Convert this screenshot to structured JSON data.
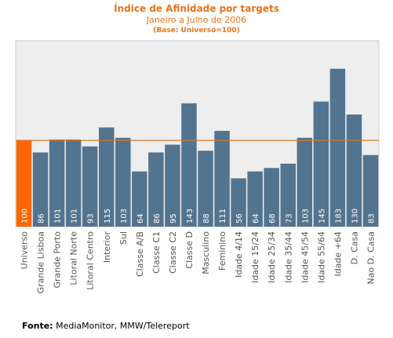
{
  "chart_data": {
    "type": "bar",
    "title": "Índice de Afinidade por targets",
    "subtitle": "Janeiro a Julho de 2006",
    "note": "(Base: Universo=100)",
    "categories": [
      "Universo",
      "Grande Lisboa",
      "Grande Porto",
      "Litoral Norte",
      "Litoral Centro",
      "Interior",
      "Sul",
      "Classe A/B",
      "Classe C1",
      "Classe C2",
      "Classe D",
      "Masculino",
      "Feminino",
      "Idade 4/14",
      "Idade 15/24",
      "Idade 25/34",
      "Idade 35/44",
      "Idade 45/54",
      "Idade 55/64",
      "Idade +64",
      "D. Casa",
      "Nao D. Casa"
    ],
    "values": [
      100,
      86,
      101,
      101,
      93,
      115,
      103,
      64,
      86,
      95,
      143,
      88,
      111,
      56,
      64,
      68,
      73,
      103,
      145,
      183,
      130,
      83
    ],
    "value_labels": [
      "100",
      "86",
      "101",
      "101",
      "93",
      "115",
      "103",
      "64",
      "86",
      "95",
      "143",
      "88",
      "111",
      "56",
      "64",
      "68",
      "73",
      "103",
      "145",
      "183",
      "130",
      "83"
    ],
    "highlight_index": 0,
    "reference_line": 100,
    "ylim": [
      0,
      200
    ],
    "grid": false,
    "colors": {
      "bar": "#53748f",
      "highlight": "#fc6500",
      "reference_line": "#e0781e",
      "plot_background": "#eeeeee",
      "plot_border": "#cccccc",
      "title": "#e8731a"
    }
  },
  "source": {
    "label": "Fonte:",
    "text": "MediaMonitor, MMW/Telereport"
  }
}
